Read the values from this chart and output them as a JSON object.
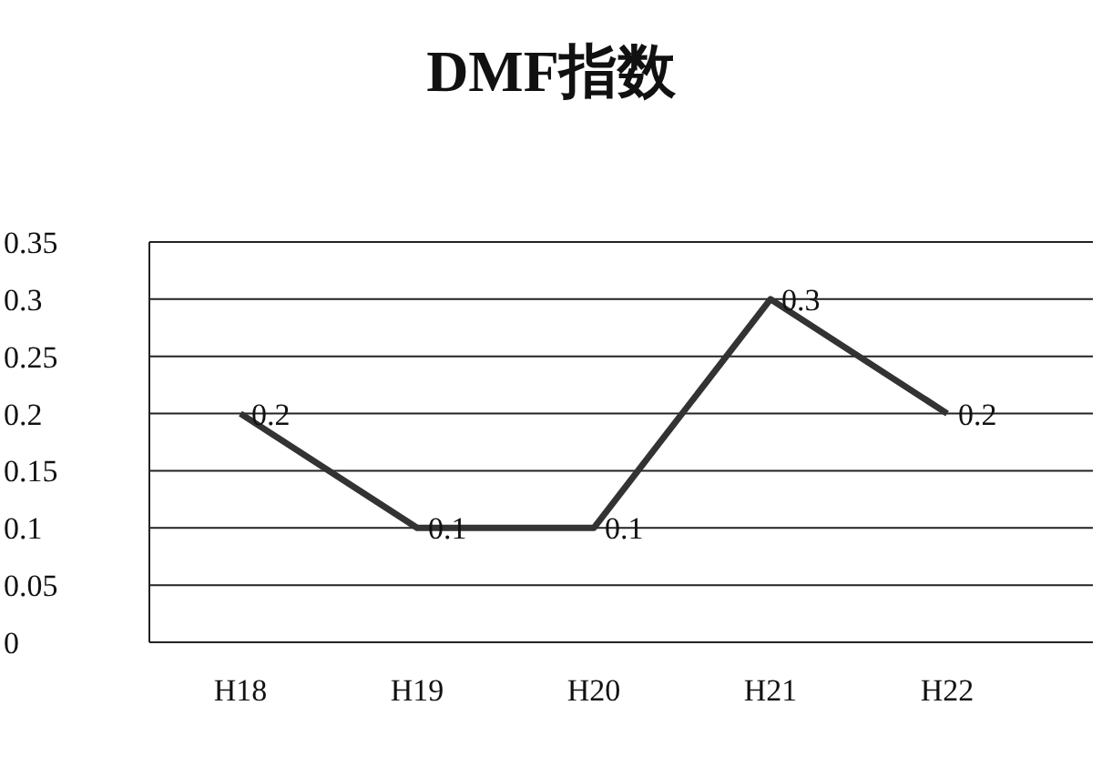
{
  "chart_data": {
    "type": "line",
    "title": "DMF指数",
    "categories": [
      "H18",
      "H19",
      "H20",
      "H21",
      "H22"
    ],
    "series": [
      {
        "color": "#333333",
        "values": [
          0.2,
          0.1,
          0.1,
          0.3,
          0.2
        ]
      }
    ],
    "ylim": [
      0,
      0.35
    ],
    "yticks": [
      0,
      0.05,
      0.1,
      0.15,
      0.2,
      0.25,
      0.3,
      0.35
    ],
    "grid": "y",
    "legend": false,
    "marker": "none",
    "line_style": "solid",
    "data_labels": true
  }
}
